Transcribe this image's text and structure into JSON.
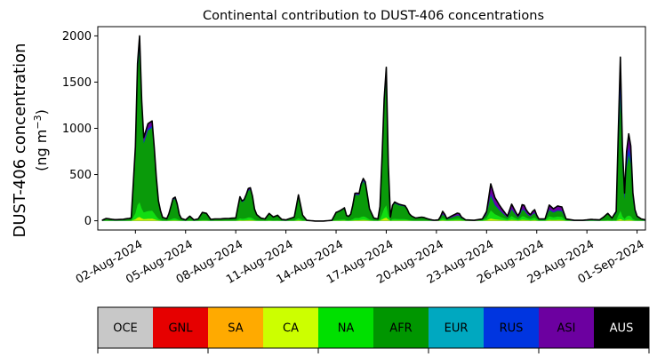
{
  "chart_data": {
    "type": "area",
    "title": "Continental contribution to DUST-406 concentrations",
    "ylabel_line1": "DUST-406 concentration",
    "ylabel_line2": "(ng m",
    "ylabel_sup": "−3",
    "ylabel_close": ")",
    "xlabel": "",
    "stacked": true,
    "x_start": "2024-07-31",
    "x_end": "2024-09-01",
    "xlim": [
      "2024-07-30T18:00",
      "2024-09-01T12:00"
    ],
    "ylim": [
      -100,
      2100
    ],
    "yticks": [
      0,
      500,
      1000,
      1500,
      2000
    ],
    "xticks": [
      "02-Aug-2024",
      "05-Aug-2024",
      "08-Aug-2024",
      "11-Aug-2024",
      "14-Aug-2024",
      "17-Aug-2024",
      "20-Aug-2024",
      "23-Aug-2024",
      "26-Aug-2024",
      "29-Aug-2024",
      "01-Sep-2024"
    ],
    "series_colors": {
      "AFR": "#0a9a0a",
      "NA": "#11dd11",
      "CA": "#c8f000",
      "ASI": "#6c00a0",
      "RUS": "#0035d8"
    },
    "total_key_points": [
      [
        "2024-07-31T00:00",
        5
      ],
      [
        "2024-07-31T06:00",
        25
      ],
      [
        "2024-07-31T18:00",
        12
      ],
      [
        "2024-08-01T06:00",
        15
      ],
      [
        "2024-08-01T18:00",
        30
      ],
      [
        "2024-08-02T00:00",
        800
      ],
      [
        "2024-08-02T03:00",
        1700
      ],
      [
        "2024-08-02T06:00",
        2000
      ],
      [
        "2024-08-02T09:00",
        1300
      ],
      [
        "2024-08-02T12:00",
        900
      ],
      [
        "2024-08-02T18:00",
        1050
      ],
      [
        "2024-08-03T00:00",
        1080
      ],
      [
        "2024-08-03T04:00",
        700
      ],
      [
        "2024-08-03T08:00",
        250
      ],
      [
        "2024-08-03T14:00",
        40
      ],
      [
        "2024-08-03T22:00",
        20
      ],
      [
        "2024-08-04T06:00",
        240
      ],
      [
        "2024-08-04T10:00",
        260
      ],
      [
        "2024-08-04T16:00",
        30
      ],
      [
        "2024-08-05T00:00",
        10
      ],
      [
        "2024-08-05T06:00",
        50
      ],
      [
        "2024-08-05T12:00",
        10
      ],
      [
        "2024-08-05T18:00",
        20
      ],
      [
        "2024-08-06T00:00",
        90
      ],
      [
        "2024-08-06T06:00",
        80
      ],
      [
        "2024-08-06T12:00",
        15
      ],
      [
        "2024-08-06T18:00",
        20
      ],
      [
        "2024-08-07T00:00",
        20
      ],
      [
        "2024-08-07T12:00",
        25
      ],
      [
        "2024-08-08T00:00",
        30
      ],
      [
        "2024-08-08T06:00",
        260
      ],
      [
        "2024-08-08T10:00",
        200
      ],
      [
        "2024-08-08T14:00",
        260
      ],
      [
        "2024-08-08T18:00",
        350
      ],
      [
        "2024-08-08T22:00",
        360
      ],
      [
        "2024-08-09T04:00",
        80
      ],
      [
        "2024-08-09T12:00",
        30
      ],
      [
        "2024-08-09T18:00",
        20
      ],
      [
        "2024-08-10T00:00",
        80
      ],
      [
        "2024-08-10T06:00",
        40
      ],
      [
        "2024-08-10T12:00",
        60
      ],
      [
        "2024-08-10T18:00",
        15
      ],
      [
        "2024-08-11T00:00",
        10
      ],
      [
        "2024-08-11T12:00",
        40
      ],
      [
        "2024-08-11T18:00",
        280
      ],
      [
        "2024-08-12T00:00",
        60
      ],
      [
        "2024-08-12T06:00",
        5
      ],
      [
        "2024-08-12T18:00",
        -3
      ],
      [
        "2024-08-13T06:00",
        -3
      ],
      [
        "2024-08-13T18:00",
        5
      ],
      [
        "2024-08-14T00:00",
        90
      ],
      [
        "2024-08-14T06:00",
        110
      ],
      [
        "2024-08-14T12:00",
        140
      ],
      [
        "2024-08-14T16:00",
        30
      ],
      [
        "2024-08-14T22:00",
        80
      ],
      [
        "2024-08-15T04:00",
        340
      ],
      [
        "2024-08-15T08:00",
        260
      ],
      [
        "2024-08-15T14:00",
        470
      ],
      [
        "2024-08-15T18:00",
        420
      ],
      [
        "2024-08-16T00:00",
        130
      ],
      [
        "2024-08-16T06:00",
        30
      ],
      [
        "2024-08-16T12:00",
        20
      ],
      [
        "2024-08-16T16:00",
        200
      ],
      [
        "2024-08-16T20:00",
        1200
      ],
      [
        "2024-08-17T00:00",
        1660
      ],
      [
        "2024-08-17T03:00",
        600
      ],
      [
        "2024-08-17T06:00",
        40
      ],
      [
        "2024-08-17T10:00",
        210
      ],
      [
        "2024-08-17T18:00",
        180
      ],
      [
        "2024-08-18T04:00",
        160
      ],
      [
        "2024-08-18T10:00",
        60
      ],
      [
        "2024-08-18T18:00",
        30
      ],
      [
        "2024-08-19T04:00",
        40
      ],
      [
        "2024-08-19T12:00",
        20
      ],
      [
        "2024-08-19T20:00",
        5
      ],
      [
        "2024-08-20T04:00",
        10
      ],
      [
        "2024-08-20T10:00",
        120
      ],
      [
        "2024-08-20T14:00",
        20
      ],
      [
        "2024-08-21T00:00",
        60
      ],
      [
        "2024-08-21T08:00",
        90
      ],
      [
        "2024-08-21T12:00",
        40
      ],
      [
        "2024-08-21T18:00",
        10
      ],
      [
        "2024-08-22T06:00",
        5
      ],
      [
        "2024-08-22T18:00",
        20
      ],
      [
        "2024-08-23T00:00",
        100
      ],
      [
        "2024-08-23T06:00",
        400
      ],
      [
        "2024-08-23T12:00",
        250
      ],
      [
        "2024-08-23T20:00",
        150
      ],
      [
        "2024-08-24T06:00",
        50
      ],
      [
        "2024-08-24T12:00",
        180
      ],
      [
        "2024-08-24T16:00",
        120
      ],
      [
        "2024-08-24T22:00",
        40
      ],
      [
        "2024-08-25T04:00",
        200
      ],
      [
        "2024-08-25T10:00",
        100
      ],
      [
        "2024-08-25T16:00",
        60
      ],
      [
        "2024-08-25T20:00",
        140
      ],
      [
        "2024-08-26T02:00",
        20
      ],
      [
        "2024-08-26T12:00",
        20
      ],
      [
        "2024-08-26T18:00",
        170
      ],
      [
        "2024-08-27T00:00",
        130
      ],
      [
        "2024-08-27T06:00",
        160
      ],
      [
        "2024-08-27T12:00",
        150
      ],
      [
        "2024-08-27T18:00",
        20
      ],
      [
        "2024-08-28T06:00",
        5
      ],
      [
        "2024-08-28T18:00",
        5
      ],
      [
        "2024-08-29T06:00",
        15
      ],
      [
        "2024-08-29T18:00",
        10
      ],
      [
        "2024-08-30T00:00",
        40
      ],
      [
        "2024-08-30T06:00",
        80
      ],
      [
        "2024-08-30T12:00",
        30
      ],
      [
        "2024-08-30T18:00",
        100
      ],
      [
        "2024-08-31T00:00",
        1770
      ],
      [
        "2024-08-31T03:00",
        800
      ],
      [
        "2024-08-31T06:00",
        300
      ],
      [
        "2024-08-31T10:00",
        900
      ],
      [
        "2024-08-31T14:00",
        980
      ],
      [
        "2024-08-31T18:00",
        300
      ],
      [
        "2024-08-31T22:00",
        60
      ],
      [
        "2024-09-01T06:00",
        20
      ],
      [
        "2024-09-01T12:00",
        10
      ],
      [
        "2024-09-01T18:00",
        10
      ],
      [
        "2024-09-02T00:00",
        10
      ]
    ]
  },
  "colorbar": {
    "items": [
      {
        "label": "OCE",
        "color": "#c8c8c8",
        "text_color": "#000000"
      },
      {
        "label": "GNL",
        "color": "#e60000",
        "text_color": "#000000"
      },
      {
        "label": "SA",
        "color": "#ffaa00",
        "text_color": "#000000"
      },
      {
        "label": "CA",
        "color": "#ccff00",
        "text_color": "#000000"
      },
      {
        "label": "NA",
        "color": "#00e000",
        "text_color": "#000000"
      },
      {
        "label": "AFR",
        "color": "#009600",
        "text_color": "#000000"
      },
      {
        "label": "EUR",
        "color": "#00a8c0",
        "text_color": "#000000"
      },
      {
        "label": "RUS",
        "color": "#0035e0",
        "text_color": "#000000"
      },
      {
        "label": "ASI",
        "color": "#6c00a0",
        "text_color": "#000000"
      },
      {
        "label": "AUS",
        "color": "#000000",
        "text_color": "#ffffff"
      }
    ]
  }
}
